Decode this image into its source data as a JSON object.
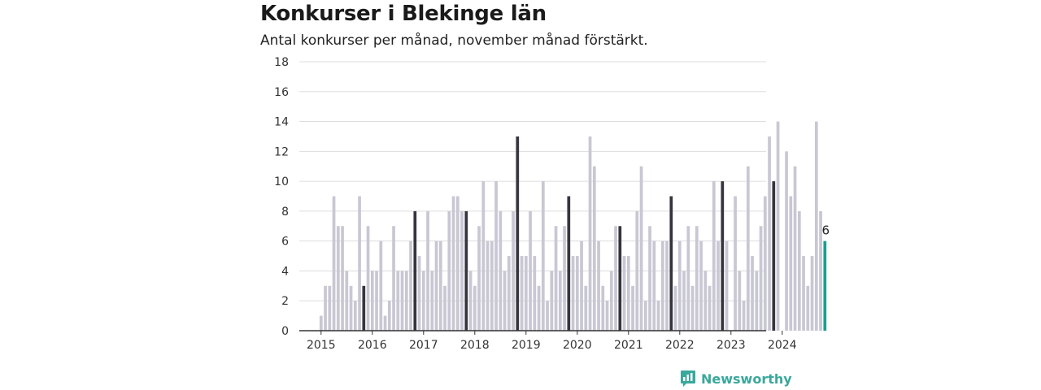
{
  "title": "Konkurser i Blekinge län",
  "subtitle": "Antal konkurser per månad, november månad förstärkt.",
  "brand": {
    "name": "Newsworthy",
    "icon": "bar-chart-icon"
  },
  "colors": {
    "regular": "#c8c7d3",
    "november": "#36353d",
    "latest": "#1a9e8f",
    "axis": "#333333",
    "grid": "#dddddd",
    "brand": "#3aa89c"
  },
  "chart_data": {
    "type": "bar",
    "title": "Konkurser i Blekinge län",
    "subtitle": "Antal konkurser per månad, november månad förstärkt.",
    "x_start": "2015-01",
    "x_tick_labels": [
      "2015",
      "2016",
      "2017",
      "2018",
      "2019",
      "2020",
      "2021",
      "2022",
      "2023",
      "2024"
    ],
    "ylim": [
      0,
      18
    ],
    "y_ticks": [
      0,
      2,
      4,
      6,
      8,
      10,
      12,
      14,
      16,
      18
    ],
    "grid": true,
    "highlight_month": "november",
    "values": [
      1,
      3,
      3,
      9,
      7,
      7,
      4,
      3,
      2,
      9,
      3,
      7,
      4,
      4,
      6,
      1,
      2,
      7,
      4,
      4,
      4,
      6,
      8,
      5,
      4,
      8,
      4,
      6,
      6,
      3,
      8,
      9,
      9,
      8,
      8,
      4,
      3,
      7,
      10,
      6,
      6,
      10,
      8,
      4,
      5,
      8,
      13,
      5,
      5,
      8,
      5,
      3,
      10,
      2,
      4,
      7,
      4,
      7,
      9,
      5,
      5,
      6,
      3,
      13,
      11,
      6,
      3,
      2,
      4,
      7,
      7,
      5,
      5,
      3,
      8,
      11,
      2,
      7,
      6,
      2,
      6,
      6,
      9,
      3,
      6,
      4,
      7,
      3,
      7,
      6,
      4,
      3,
      10,
      6,
      10,
      6,
      0,
      9,
      4,
      2,
      11,
      5,
      4,
      7,
      9,
      13,
      10,
      14,
      0,
      12,
      9,
      11,
      8,
      5,
      3,
      5,
      14,
      8,
      6
    ],
    "latest_value_label": "6"
  }
}
